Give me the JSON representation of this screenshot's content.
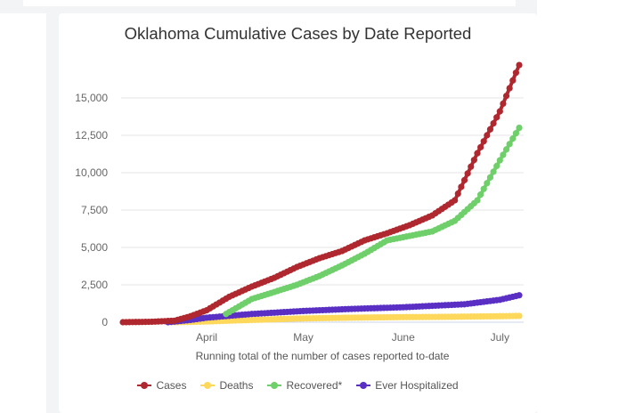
{
  "chart_data": {
    "type": "line",
    "title": "Oklahoma Cumulative Cases by Date Reported",
    "xlabel": "Running total of the number of cases reported to-date",
    "ylabel": "",
    "x_ticks": [
      {
        "date": "04-01",
        "label": "April"
      },
      {
        "date": "05-01",
        "label": "May"
      },
      {
        "date": "06-01",
        "label": "June"
      },
      {
        "date": "07-01",
        "label": "July"
      }
    ],
    "y_ticks": [
      {
        "value": 0,
        "label": "0"
      },
      {
        "value": 2500,
        "label": "2,500"
      },
      {
        "value": 5000,
        "label": "5,000"
      },
      {
        "value": 7500,
        "label": "7,500"
      },
      {
        "value": 10000,
        "label": "10,000"
      },
      {
        "value": 12500,
        "label": "12,500"
      },
      {
        "value": 15000,
        "label": "15,000"
      }
    ],
    "xlim": [
      "03-06",
      "07-07"
    ],
    "ylim": [
      0,
      17500
    ],
    "grid": true,
    "legend": "bottom",
    "series": [
      {
        "name": "Cases",
        "color": "#b0282f",
        "points": [
          [
            "03-06",
            0
          ],
          [
            "03-15",
            30
          ],
          [
            "03-22",
            100
          ],
          [
            "03-27",
            400
          ],
          [
            "04-01",
            800
          ],
          [
            "04-08",
            1700
          ],
          [
            "04-15",
            2380
          ],
          [
            "04-22",
            2970
          ],
          [
            "04-29",
            3690
          ],
          [
            "05-06",
            4280
          ],
          [
            "05-13",
            4760
          ],
          [
            "05-20",
            5470
          ],
          [
            "05-27",
            5950
          ],
          [
            "06-03",
            6490
          ],
          [
            "06-10",
            7140
          ],
          [
            "06-17",
            8150
          ],
          [
            "06-24",
            11300
          ],
          [
            "07-01",
            14100
          ],
          [
            "07-07",
            17200
          ]
        ]
      },
      {
        "name": "Deaths",
        "color": "#fdd85a",
        "points": [
          [
            "03-20",
            0
          ],
          [
            "03-27",
            20
          ],
          [
            "04-01",
            50
          ],
          [
            "04-15",
            150
          ],
          [
            "05-01",
            250
          ],
          [
            "05-15",
            300
          ],
          [
            "06-01",
            340
          ],
          [
            "06-15",
            360
          ],
          [
            "07-01",
            400
          ],
          [
            "07-07",
            420
          ]
        ]
      },
      {
        "name": "Recovered*",
        "color": "#6fcf6a",
        "points": [
          [
            "04-07",
            550
          ],
          [
            "04-15",
            1550
          ],
          [
            "04-22",
            2020
          ],
          [
            "04-29",
            2500
          ],
          [
            "05-06",
            3090
          ],
          [
            "05-13",
            3800
          ],
          [
            "05-20",
            4580
          ],
          [
            "05-27",
            5470
          ],
          [
            "06-03",
            5770
          ],
          [
            "06-10",
            6070
          ],
          [
            "06-17",
            6780
          ],
          [
            "06-24",
            8150
          ],
          [
            "07-01",
            10830
          ],
          [
            "07-07",
            13000
          ]
        ]
      },
      {
        "name": "Ever Hospitalized",
        "color": "#5a2fc4",
        "points": [
          [
            "03-20",
            0
          ],
          [
            "03-27",
            150
          ],
          [
            "04-01",
            300
          ],
          [
            "04-15",
            550
          ],
          [
            "05-01",
            750
          ],
          [
            "05-15",
            880
          ],
          [
            "06-01",
            1000
          ],
          [
            "06-20",
            1200
          ],
          [
            "07-01",
            1500
          ],
          [
            "07-07",
            1800
          ]
        ]
      }
    ]
  }
}
